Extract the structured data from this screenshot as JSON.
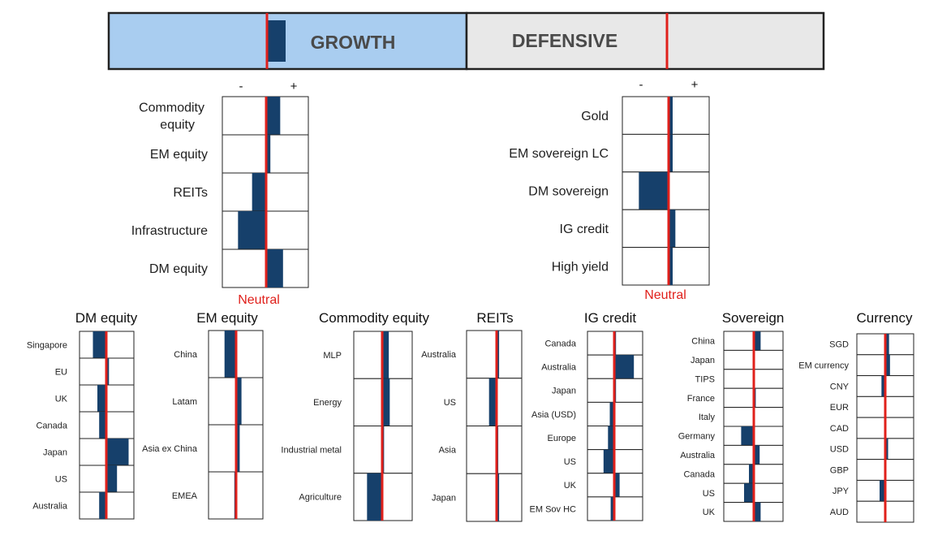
{
  "banner": {
    "growth_label": "GROWTH",
    "defensive_label": "DEFENSIVE",
    "growth_bar_value": 1
  },
  "colors": {
    "bar": "#16406b",
    "neutral_line": "#e0201b",
    "growth_bg": "#a9cdf0",
    "defensive_bg": "#e8e8e8",
    "border": "#222222"
  },
  "chart_data": [
    {
      "type": "bar",
      "title": "",
      "minus_label": "-",
      "plus_label": "+",
      "neutral_label": "Neutral",
      "categories": [
        "Commodity equity",
        "EM equity",
        "REITs",
        "Infrastructure",
        "DM equity"
      ],
      "values": [
        1,
        0.3,
        -1,
        -2,
        1.2
      ],
      "xlim": [
        -3,
        3
      ]
    },
    {
      "type": "bar",
      "title": "",
      "minus_label": "-",
      "plus_label": "+",
      "neutral_label": "Neutral",
      "categories": [
        "Gold",
        "EM sovereign LC",
        "DM sovereign",
        "IG credit",
        "High yield"
      ],
      "values": [
        0.3,
        0.3,
        -2.2,
        0.5,
        0.3
      ],
      "xlim": [
        -3,
        3
      ]
    },
    {
      "type": "bar",
      "title": "DM equity",
      "categories": [
        "Singapore",
        "EU",
        "UK",
        "Canada",
        "Japan",
        "US",
        "Australia"
      ],
      "values": [
        -1.5,
        0.3,
        -1,
        -0.8,
        2.5,
        1.2,
        -0.8
      ],
      "xlim": [
        -3,
        3
      ]
    },
    {
      "type": "bar",
      "title": "EM equity",
      "categories": [
        "China",
        "Latam",
        "Asia ex China",
        "EMEA"
      ],
      "values": [
        -1.3,
        0.6,
        0.4,
        -0.2
      ],
      "xlim": [
        -3,
        3
      ]
    },
    {
      "type": "bar",
      "title": "Commodity equity",
      "categories": [
        "MLP",
        "Energy",
        "Industrial metal",
        "Agriculture"
      ],
      "values": [
        0.7,
        0.8,
        0.2,
        -1.6
      ],
      "xlim": [
        -3,
        3
      ]
    },
    {
      "type": "bar",
      "title": "REITs",
      "categories": [
        "Australia",
        "US",
        "Asia",
        "Japan"
      ],
      "values": [
        0.3,
        -0.9,
        0.2,
        0.3
      ],
      "xlim": [
        -3,
        3
      ]
    },
    {
      "type": "bar",
      "title": "IG credit",
      "categories": [
        "Canada",
        "Australia",
        "Japan",
        "Asia (USD)",
        "Europe",
        "US",
        "UK",
        "EM Sov HC"
      ],
      "values": [
        0.2,
        2.2,
        0.2,
        -0.5,
        -0.7,
        -1.2,
        0.6,
        -0.4
      ],
      "xlim": [
        -3,
        3
      ]
    },
    {
      "type": "bar",
      "title": "Sovereign",
      "categories": [
        "China",
        "Japan",
        "TIPS",
        "France",
        "Italy",
        "Germany",
        "Australia",
        "Canada",
        "US",
        "UK"
      ],
      "values": [
        0.7,
        0,
        0,
        0.2,
        0,
        -1.3,
        0.6,
        -0.5,
        -1,
        0.7
      ],
      "xlim": [
        -3,
        3
      ]
    },
    {
      "type": "bar",
      "title": "Currency",
      "categories": [
        "SGD",
        "EM currency",
        "CNY",
        "EUR",
        "CAD",
        "USD",
        "GBP",
        "JPY",
        "AUD"
      ],
      "values": [
        0.4,
        0.5,
        -0.4,
        0,
        0,
        0.3,
        0,
        -0.6,
        0
      ],
      "xlim": [
        -3,
        3
      ]
    }
  ]
}
